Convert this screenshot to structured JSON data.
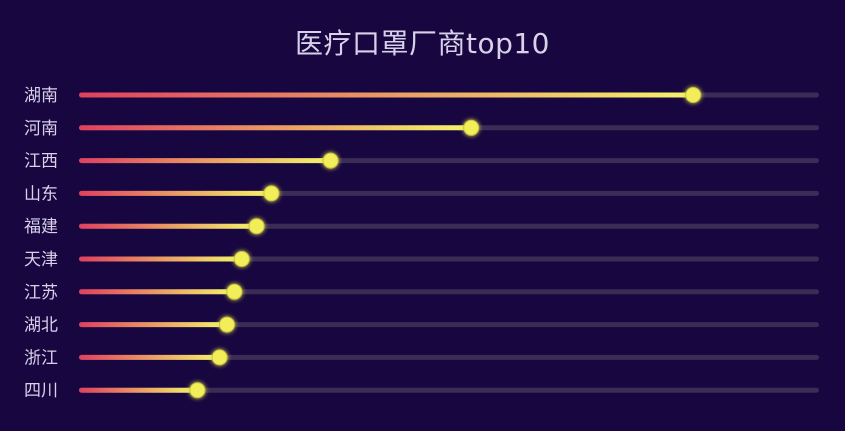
{
  "chart_data": {
    "type": "bar",
    "title": "医疗口罩厂商top10",
    "categories": [
      "湖南",
      "河南",
      "江西",
      "山东",
      "福建",
      "天津",
      "江苏",
      "湖北",
      "浙江",
      "四川"
    ],
    "values": [
      83,
      53,
      34,
      26,
      24,
      22,
      21,
      20,
      19,
      16
    ],
    "xlim": [
      0,
      100
    ],
    "grid": false,
    "orientation": "horizontal",
    "colors": {
      "background": "#17063f",
      "track": "#3b2c55",
      "gradient_start": "#e0405f",
      "gradient_end": "#f5f46a",
      "marker": "#f2ee5a",
      "label": "#d7d1ea"
    }
  }
}
